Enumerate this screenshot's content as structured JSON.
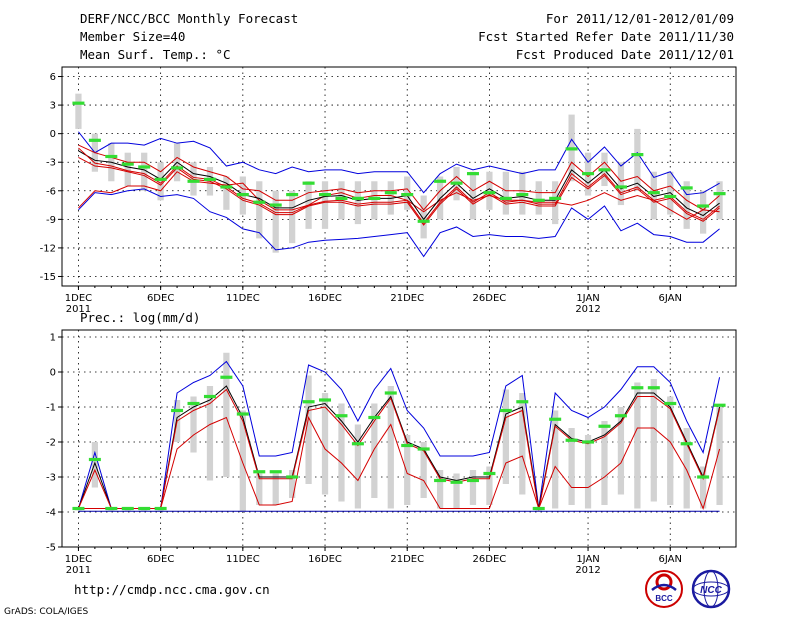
{
  "header": {
    "title": "DERF/NCC/BCC Monthly Forecast",
    "member": "Member Size=40",
    "variable": "Mean Surf. Temp.: °C",
    "period": "For 2011/12/01-2012/01/09",
    "started": "Fcst Started Refer Date 2011/11/30",
    "produced": "Fcst Produced Date 2011/12/01"
  },
  "footer": {
    "url": "http://cmdp.ncc.cma.gov.cn",
    "credit": "GrADS: COLA/IGES",
    "logo_bcc": "BCC",
    "logo_ncc": "NCC"
  },
  "colors": {
    "envelope": "#0000dd",
    "spread": "#d40000",
    "median": "#000000",
    "box": "#d2d2d2",
    "marker": "#33dd33",
    "floor": "#0000aa"
  },
  "chart_data": [
    {
      "type": "line",
      "title": "Mean Surf. Temp.: °C",
      "x_tick_labels": [
        "1DEC",
        "6DEC",
        "11DEC",
        "16DEC",
        "21DEC",
        "26DEC",
        "1JAN",
        "6JAN"
      ],
      "x_tick_days": [
        0,
        5,
        10,
        15,
        20,
        25,
        31,
        36
      ],
      "year_labels": [
        {
          "day": 0,
          "text": "2011"
        },
        {
          "day": 31,
          "text": "2012"
        }
      ],
      "ylim": [
        -16,
        7
      ],
      "yticks": [
        6,
        3,
        0,
        -3,
        -6,
        -9,
        -12,
        -15
      ],
      "xlim": [
        -1,
        40
      ],
      "days": 40,
      "series": [
        {
          "name": "max",
          "values": [
            -7.8,
            -6,
            -6.2,
            -5.5,
            -5.5,
            -6,
            -4,
            -5,
            -5.2,
            -5.4,
            -5.2,
            -7,
            -8,
            -8,
            -7.5,
            -6.5,
            -6.2,
            -6.8,
            -6.5,
            -6.5,
            -7,
            -8.2,
            -7,
            -6.2,
            -7,
            -6.5,
            -7,
            -7,
            -7.2,
            -7.2,
            -7.5,
            -7,
            -6.2,
            -7,
            -6.5,
            -7,
            -8,
            -9,
            -8,
            -8.2
          ]
        },
        {
          "name": "p75",
          "values": [
            -1.2,
            -2,
            -2.5,
            -3,
            -3,
            -4,
            -2.5,
            -3.5,
            -4,
            -4.5,
            -5.8,
            -6,
            -7,
            -7,
            -6.2,
            -6,
            -5.8,
            -6.2,
            -6,
            -6,
            -5.8,
            -8,
            -6,
            -4.5,
            -6,
            -5,
            -6,
            -6,
            -6.2,
            -6.2,
            -3,
            -4.5,
            -3,
            -5,
            -4.5,
            -6,
            -5.5,
            -7,
            -8,
            -6.5
          ]
        },
        {
          "name": "median",
          "values": [
            -1.8,
            -2.8,
            -3,
            -3.5,
            -3.8,
            -4.8,
            -3,
            -4.2,
            -4.5,
            -5.2,
            -6.4,
            -6.8,
            -7.8,
            -7.8,
            -7,
            -6.6,
            -6.5,
            -7,
            -6.8,
            -6.8,
            -6.5,
            -9,
            -6.8,
            -5.2,
            -6.8,
            -5.8,
            -6.8,
            -6.6,
            -7,
            -7,
            -3.8,
            -5.2,
            -3.8,
            -5.8,
            -5.2,
            -6.6,
            -6.2,
            -7.8,
            -8.6,
            -7.3
          ]
        },
        {
          "name": "p25",
          "values": [
            -2.5,
            -3.4,
            -3.6,
            -4,
            -4.4,
            -5.4,
            -3.6,
            -4.8,
            -5,
            -5.8,
            -7,
            -7.5,
            -8.5,
            -8.5,
            -7.6,
            -7.2,
            -7.2,
            -7.6,
            -7.4,
            -7.4,
            -7.2,
            -9.6,
            -7.4,
            -5.8,
            -7.4,
            -6.4,
            -7.4,
            -7.2,
            -7.6,
            -7.6,
            -4.6,
            -5.8,
            -4.4,
            -6.4,
            -5.8,
            -7.2,
            -6.8,
            -8.4,
            -9.2,
            -7.8
          ]
        },
        {
          "name": "min",
          "values": [
            -1.5,
            -3.1,
            -3.4,
            -3.9,
            -4.2,
            -5.2,
            -3.4,
            -4.6,
            -4.8,
            -5.6,
            -6.8,
            -7.3,
            -8.3,
            -8.3,
            -7.5,
            -7.1,
            -7,
            -7.4,
            -7.2,
            -7.2,
            -7,
            -9.4,
            -7.2,
            -5.6,
            -7.2,
            -6.2,
            -7.2,
            -7,
            -7.4,
            -7.4,
            -4.2,
            -5.6,
            -4.2,
            -6.2,
            -5.6,
            -7,
            -6.6,
            -8.2,
            -9,
            -7.6
          ]
        }
      ],
      "envelope_high": [
        0.2,
        -2,
        -1,
        -1,
        -1.2,
        -0.5,
        -1,
        -0.8,
        -1.5,
        -3.4,
        -3,
        -3.8,
        -4.2,
        -3.5,
        -4,
        -3.8,
        -3.8,
        -4.2,
        -4,
        -4,
        -4,
        -6.2,
        -4.2,
        -3.2,
        -3.8,
        -3.4,
        -3.8,
        -4.2,
        -3.8,
        -3.8,
        -0.6,
        -3,
        -1.4,
        -3.4,
        -2,
        -4.6,
        -4,
        -6.4,
        -6.2,
        -5.2
      ],
      "envelope_low": [
        -8,
        -6.2,
        -6.4,
        -6,
        -5.8,
        -6.6,
        -6.4,
        -6.8,
        -8.2,
        -8.8,
        -10,
        -10.4,
        -12.2,
        -12,
        -11.4,
        -11.2,
        -11.1,
        -11,
        -10.8,
        -10.6,
        -10.4,
        -12.9,
        -10.4,
        -9.8,
        -10.8,
        -10.6,
        -10.8,
        -10.8,
        -11,
        -10.8,
        -7.8,
        -9,
        -7.6,
        -10.2,
        -9.4,
        -10.6,
        -10.8,
        -11.4,
        -11.4,
        -10
      ]
    },
    {
      "type": "line",
      "title": "Prec.: log(mm/d)",
      "x_tick_labels": [
        "1DEC",
        "6DEC",
        "11DEC",
        "16DEC",
        "21DEC",
        "26DEC",
        "1JAN",
        "6JAN"
      ],
      "x_tick_days": [
        0,
        5,
        10,
        15,
        20,
        25,
        31,
        36
      ],
      "year_labels": [
        {
          "day": 0,
          "text": "2011"
        },
        {
          "day": 31,
          "text": "2012"
        }
      ],
      "ylim": [
        -5,
        1.2
      ],
      "yticks": [
        1,
        0,
        -1,
        -2,
        -3,
        -4,
        -5
      ],
      "xlim": [
        -1,
        40
      ],
      "days": 40,
      "series": [
        {
          "name": "median",
          "values": [
            -3.9,
            -2.6,
            -3.9,
            -3.9,
            -3.9,
            -3.9,
            -1.3,
            -1,
            -0.8,
            -0.4,
            -1.3,
            -3,
            -3,
            -3,
            -1,
            -0.9,
            -1.4,
            -2,
            -1.3,
            -0.7,
            -2,
            -2.2,
            -3,
            -3.1,
            -3,
            -3,
            -1.2,
            -1,
            -3.9,
            -1.5,
            -1.9,
            -2,
            -1.8,
            -1.4,
            -0.6,
            -0.6,
            -1,
            -2,
            -3,
            -1
          ]
        },
        {
          "name": "p25",
          "values": [
            -3.9,
            -2.8,
            -3.9,
            -3.9,
            -3.9,
            -3.9,
            -1.4,
            -1.1,
            -0.9,
            -0.5,
            -1.4,
            -3.05,
            -3.05,
            -3.05,
            -1.1,
            -1,
            -1.5,
            -2.1,
            -1.4,
            -0.75,
            -2.05,
            -2.25,
            -3.05,
            -3.15,
            -3.05,
            -3.05,
            -1.3,
            -1.1,
            -3.95,
            -1.55,
            -1.95,
            -2.05,
            -1.85,
            -1.45,
            -0.7,
            -0.7,
            -1.05,
            -2.05,
            -3.05,
            -1.05
          ]
        },
        {
          "name": "low",
          "values": [
            -3.9,
            -3.9,
            -3.9,
            -3.9,
            -3.9,
            -3.9,
            -2.2,
            -1.8,
            -1.5,
            -1.3,
            -2.6,
            -3.8,
            -3.8,
            -3.7,
            -1.3,
            -2.2,
            -2.6,
            -3.1,
            -2.2,
            -1.5,
            -2.9,
            -3.1,
            -3.9,
            -3.9,
            -3.9,
            -3.9,
            -2.6,
            -2.4,
            -3.9,
            -2.7,
            -3.3,
            -3.3,
            -3,
            -2.6,
            -1.6,
            -1.6,
            -2,
            -2.8,
            -3.9,
            -2.2
          ]
        }
      ],
      "envelope_high": [
        -3.9,
        -2.3,
        -3.9,
        -3.9,
        -3.9,
        -3.9,
        -0.6,
        -0.3,
        -0.1,
        0.3,
        -0.4,
        -2.4,
        -2.4,
        -2.3,
        0.2,
        0,
        -0.5,
        -1.4,
        -0.5,
        0.1,
        -1.1,
        -1.6,
        -2.4,
        -2.4,
        -2.4,
        -2.3,
        -0.4,
        -0.1,
        -3.9,
        -0.6,
        -1.1,
        -1.3,
        -1,
        -0.5,
        0.15,
        0.15,
        -0.3,
        -1.4,
        -2.3,
        -0.15
      ],
      "envelope_low": [
        -3.98,
        -3.98,
        -3.98,
        -3.98,
        -3.98,
        -3.98,
        -3.98,
        -3.98,
        -3.98,
        -3.98,
        -3.98,
        -3.98,
        -3.98,
        -3.98,
        -3.98,
        -3.98,
        -3.98,
        -3.98,
        -3.98,
        -3.98,
        -3.98,
        -3.98,
        -3.98,
        -3.98,
        -3.98,
        -3.98,
        -3.98,
        -3.98,
        -3.98,
        -3.98,
        -3.98,
        -3.98,
        -3.98,
        -3.98,
        -3.98,
        -3.98,
        -3.98,
        -3.98,
        -3.98,
        -3.98
      ]
    }
  ],
  "markers_temp": [
    3.2,
    -0.7,
    -2.4,
    -3.2,
    -3.5,
    -4.8,
    -3.6,
    -5,
    -4.8,
    -5.6,
    -6.4,
    -7.2,
    -7.5,
    -6.4,
    -5.2,
    -6.4,
    -6.8,
    -6.8,
    -6.8,
    -6.2,
    -6.4,
    -9.2,
    -5,
    -5.2,
    -4.2,
    -6.2,
    -6.8,
    -6.4,
    -7,
    -6.8,
    -1.6,
    -4.2,
    -3.8,
    -5.6,
    -2.2,
    -6.2,
    -6.6,
    -5.7,
    -7.6,
    -6.3
  ],
  "markers_prec": [
    -3.9,
    -2.5,
    -3.9,
    -3.9,
    -3.9,
    -3.9,
    -1.1,
    -0.9,
    -0.7,
    -0.15,
    -1.2,
    -2.85,
    -2.85,
    -3,
    -0.85,
    -0.8,
    -1.25,
    -2.05,
    -1.3,
    -0.6,
    -2.1,
    -2.2,
    -3.1,
    -3.15,
    -3.1,
    -2.9,
    -1.1,
    -0.85,
    -3.9,
    -1.35,
    -1.95,
    -2,
    -1.55,
    -1.25,
    -0.45,
    -0.45,
    -0.9,
    -2.05,
    -3,
    -0.95
  ],
  "boxes_temp": [
    [
      0.5,
      4.2
    ],
    [
      -4,
      0
    ],
    [
      -5,
      -1
    ],
    [
      -5.5,
      -2
    ],
    [
      -6,
      -2
    ],
    [
      -7,
      -3
    ],
    [
      -5,
      -1
    ],
    [
      -6.5,
      -3
    ],
    [
      -6.5,
      -3.5
    ],
    [
      -8,
      -4.5
    ],
    [
      -8.5,
      -4.5
    ],
    [
      -11,
      -5
    ],
    [
      -12.5,
      -6
    ],
    [
      -11.5,
      -6
    ],
    [
      -10,
      -5
    ],
    [
      -10,
      -5
    ],
    [
      -9,
      -5
    ],
    [
      -9.5,
      -5
    ],
    [
      -9,
      -5
    ],
    [
      -8.5,
      -5
    ],
    [
      -8,
      -4.5
    ],
    [
      -11,
      -6.5
    ],
    [
      -9,
      -4.5
    ],
    [
      -7,
      -3.5
    ],
    [
      -9,
      -4
    ],
    [
      -8,
      -4
    ],
    [
      -8.5,
      -4
    ],
    [
      -8.5,
      -4
    ],
    [
      -8.5,
      -5
    ],
    [
      -9.5,
      -5
    ],
    [
      -5,
      2
    ],
    [
      -6.5,
      -2
    ],
    [
      -5.5,
      -2
    ],
    [
      -7.5,
      -3
    ],
    [
      -6,
      0.5
    ],
    [
      -9,
      -4
    ],
    [
      -8.5,
      -4
    ],
    [
      -10,
      -5
    ],
    [
      -10.5,
      -6
    ],
    [
      -9,
      -5
    ]
  ],
  "boxes_prec": [
    [
      -3.9,
      -3.9
    ],
    [
      -3.3,
      -2
    ],
    [
      -3.9,
      -3.9
    ],
    [
      -3.9,
      -3.9
    ],
    [
      -3.9,
      -3.9
    ],
    [
      -3.9,
      -3.9
    ],
    [
      -2,
      -0.8
    ],
    [
      -2.3,
      -0.7
    ],
    [
      -3.1,
      -0.4
    ],
    [
      -3,
      0.55
    ],
    [
      -4,
      -1.1
    ],
    [
      -3.8,
      -2.9
    ],
    [
      -3.8,
      -2.9
    ],
    [
      -3.6,
      -2.8
    ],
    [
      -3.2,
      -0.1
    ],
    [
      -3.5,
      -0.6
    ],
    [
      -3.7,
      -0.9
    ],
    [
      -3.9,
      -1.5
    ],
    [
      -3.6,
      -0.9
    ],
    [
      -3.9,
      -0.4
    ],
    [
      -3.8,
      -1.8
    ],
    [
      -3.6,
      -2
    ],
    [
      -3.9,
      -2.8
    ],
    [
      -3.9,
      -2.9
    ],
    [
      -3.8,
      -2.8
    ],
    [
      -3.8,
      -2.7
    ],
    [
      -3.2,
      -0.5
    ],
    [
      -3.5,
      -0.6
    ],
    [
      -3.9,
      -3.9
    ],
    [
      -3.9,
      -1.1
    ],
    [
      -3.8,
      -1.6
    ],
    [
      -3.9,
      -1.8
    ],
    [
      -3.8,
      -1.4
    ],
    [
      -3.5,
      -1
    ],
    [
      -3.9,
      -0.3
    ],
    [
      -3.7,
      -0.2
    ],
    [
      -3.8,
      -0.7
    ],
    [
      -3.9,
      -1.6
    ],
    [
      -3.9,
      -2.7
    ],
    [
      -3.8,
      -1
    ]
  ]
}
